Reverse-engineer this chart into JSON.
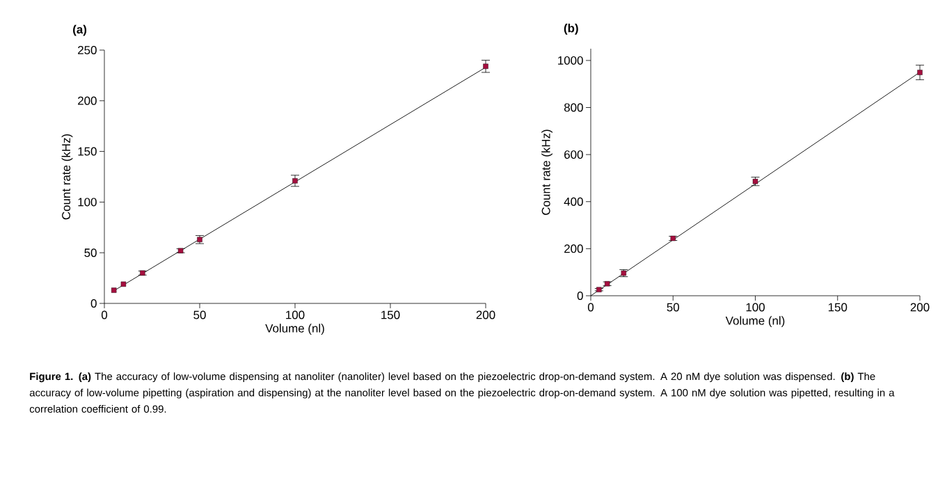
{
  "chart_data": [
    {
      "type": "scatter",
      "title": "(a)",
      "xlabel": "Volume (nl)",
      "ylabel": "Count rate (kHz)",
      "xlim": [
        0,
        200
      ],
      "ylim": [
        0,
        250
      ],
      "xticks": [
        0,
        50,
        100,
        150,
        200
      ],
      "yticks": [
        0,
        50,
        100,
        150,
        200,
        250
      ],
      "grid": false,
      "series": [
        {
          "marker": "square",
          "color": "#a50f3f",
          "x": [
            5,
            10,
            20,
            40,
            50,
            100,
            200
          ],
          "values": [
            13,
            19,
            30,
            52,
            63,
            121,
            234
          ],
          "errors": [
            null,
            null,
            2,
            2,
            4,
            5.5,
            6
          ]
        },
        {
          "type": "line",
          "color": "#000000",
          "x": [
            5,
            200
          ],
          "values": [
            12.5,
            233
          ]
        }
      ],
      "annotations": [
        "**Figure 1. (a)** The accuracy of low-volume dispensing at nanoliter (nanoliter) level based on the piezoelectric drop-on-demand system. A 20 nM dye solution was dispensed. **(b)** The accuracy of low-volume pipetting (aspiration and dispensing) at the nanoliter level based on the piezoelectric drop-on-demand system. A 100 nM dye solution was pipetted, resulting in a correlation coefficient of 0.99."
      ]
    },
    {
      "type": "scatter",
      "title": "(b)",
      "xlabel": "Volume (nl)",
      "ylabel": "Count rate (kHz)",
      "xlim": [
        0,
        200
      ],
      "ylim": [
        0,
        1050
      ],
      "xticks": [
        0,
        50,
        100,
        150,
        200
      ],
      "yticks": [
        0,
        200,
        400,
        600,
        800,
        1000
      ],
      "grid": false,
      "series": [
        {
          "marker": "square",
          "color": "#a50f3f",
          "x": [
            5,
            10,
            20,
            50,
            100,
            200
          ],
          "values": [
            26,
            51,
            96,
            244,
            486,
            949
          ],
          "errors": [
            5,
            8,
            15,
            9,
            18,
            31
          ]
        },
        {
          "type": "line",
          "color": "#000000",
          "x": [
            0,
            200
          ],
          "values": [
            0,
            950
          ]
        }
      ]
    }
  ]
}
